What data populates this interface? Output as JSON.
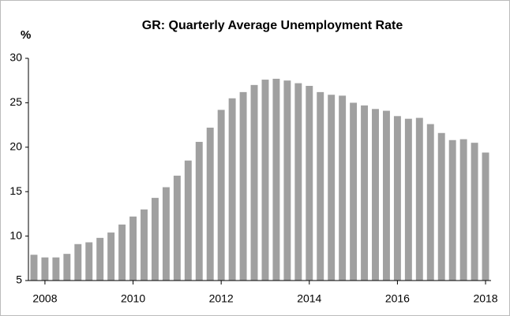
{
  "chart_data": {
    "type": "bar",
    "title": "GR: Quarterly Average Unemployment Rate",
    "y_label": "%",
    "categories": [
      null,
      "2008",
      null,
      null,
      null,
      null,
      null,
      null,
      null,
      "2010",
      null,
      null,
      null,
      null,
      null,
      null,
      null,
      "2012",
      null,
      null,
      null,
      null,
      null,
      null,
      null,
      "2014",
      null,
      null,
      null,
      null,
      null,
      null,
      null,
      "2016",
      null,
      null,
      null,
      null,
      null,
      null,
      null,
      "2018"
    ],
    "values": [
      7.9,
      7.6,
      7.6,
      8.0,
      9.1,
      9.3,
      9.8,
      10.4,
      11.3,
      12.2,
      13.0,
      14.3,
      15.5,
      16.8,
      18.5,
      20.6,
      22.2,
      24.2,
      25.5,
      26.2,
      27.0,
      27.6,
      27.7,
      27.5,
      27.2,
      26.9,
      26.2,
      25.9,
      25.8,
      25.0,
      24.7,
      24.3,
      24.1,
      23.5,
      23.2,
      23.3,
      22.6,
      21.6,
      20.8,
      20.9,
      20.5,
      19.4
    ],
    "color": "#a0a0a0",
    "ylim": [
      5,
      30
    ],
    "yticks": [
      5,
      10,
      15,
      20,
      25,
      30
    ],
    "grid": false
  }
}
